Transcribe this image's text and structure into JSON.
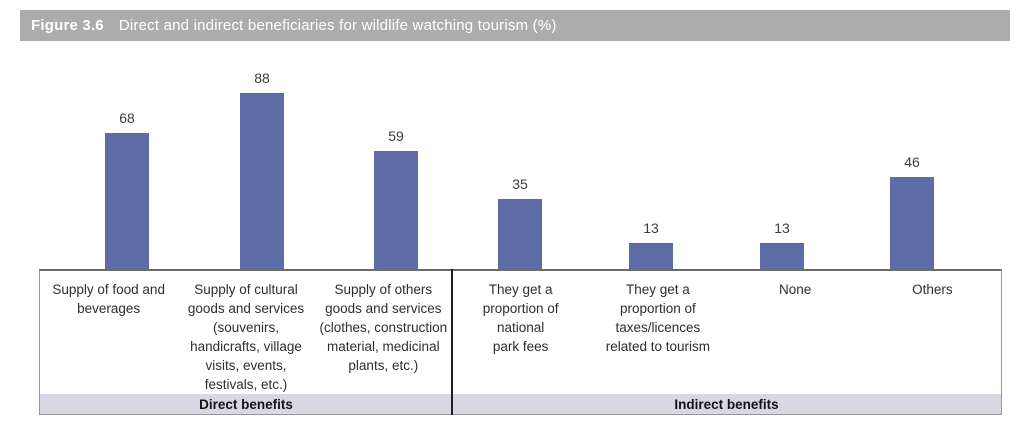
{
  "figure": {
    "label": "Figure 3.6",
    "title": "Direct and indirect beneficiaries for wildlife watching tourism (%)"
  },
  "chart_data": {
    "type": "bar",
    "title": "Direct and indirect beneficiaries for wildlife watching tourism (%)",
    "categories": [
      "Supply of food and beverages",
      "Supply of cultural goods and services (souvenirs, handicrafts, village visits, events, festivals, etc.)",
      "Supply of others goods and services (clothes, construction material, medicinal plants, etc.)",
      "They get a proportion of national park fees",
      "They get a proportion of taxes/licences related to tourism",
      "None",
      "Others"
    ],
    "values": [
      68,
      88,
      59,
      35,
      13,
      13,
      46
    ],
    "data_labels": [
      "68",
      "88",
      "59",
      "35",
      "13",
      "13",
      "46"
    ],
    "groups": [
      {
        "label": "Direct benefits",
        "category_count": 3
      },
      {
        "label": "Indirect benefits",
        "category_count": 4
      }
    ],
    "xlabel": "",
    "ylabel": "",
    "ylim": [
      0,
      100
    ],
    "grid": false,
    "legend": null,
    "data_labels_shown": true,
    "colors": {
      "bar": "#5e6ca6",
      "header_bg": "#acacac",
      "header_text": "#ffffff",
      "group_band_bg": "#d9d7e4",
      "divider": "#1f1f1f",
      "box_border": "#979797",
      "baseline": "#6b6b6b"
    }
  }
}
